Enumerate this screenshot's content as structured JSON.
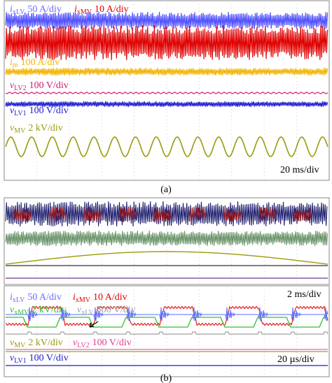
{
  "panel_a": {
    "labels": [
      {
        "symbol": "i",
        "sub": "xLV",
        "scale": "50 A/div"
      },
      {
        "symbol": "i",
        "sub": "xMV",
        "scale": "10 A/div"
      },
      {
        "symbol": "i",
        "sub": "m",
        "scale": "100 A/div"
      },
      {
        "symbol": "v",
        "sub": "LV2",
        "scale": "100 V/div"
      },
      {
        "symbol": "v",
        "sub": "LV1",
        "scale": "100 V/div"
      },
      {
        "symbol": "v",
        "sub": "MV",
        "scale": "2 kV/div"
      }
    ],
    "timebase": "20 ms/div",
    "caption": "(a)"
  },
  "panel_b": {
    "timebase_top": "2 ms/div",
    "labels": [
      {
        "symbol": "i",
        "sub": "xLV",
        "scale": "50 A/div"
      },
      {
        "symbol": "i",
        "sub": "xMV",
        "scale": "10 A/div"
      },
      {
        "symbol": "v",
        "sub": "xMV",
        "scale": "2 kV/div"
      },
      {
        "symbol": "v",
        "sub": "xLV",
        "scale": "500 V/div"
      },
      {
        "symbol": "v",
        "sub": "MV",
        "scale": "2 kV/div"
      },
      {
        "symbol": "v",
        "sub": "LV2",
        "scale": "100 V/div"
      },
      {
        "symbol": "v",
        "sub": "LV1",
        "scale": "100 V/div"
      }
    ],
    "timebase_bottom": "20 µs/div",
    "caption": "(b)"
  }
}
